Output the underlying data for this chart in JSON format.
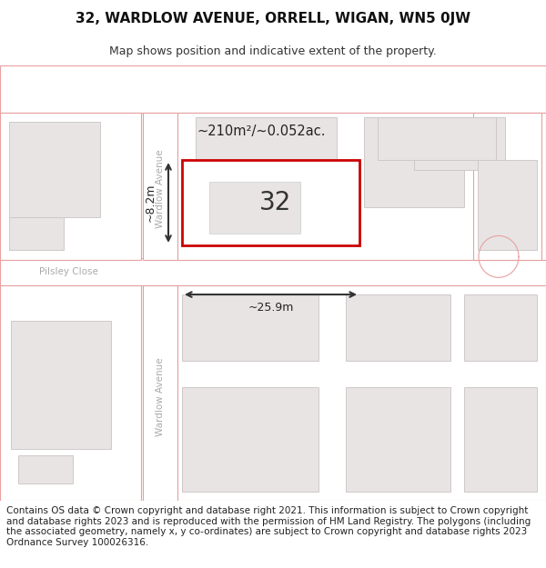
{
  "title": "32, WARDLOW AVENUE, ORRELL, WIGAN, WN5 0JW",
  "subtitle": "Map shows position and indicative extent of the property.",
  "footer": "Contains OS data © Crown copyright and database right 2021. This information is subject to Crown copyright and database rights 2023 and is reproduced with the permission of HM Land Registry. The polygons (including the associated geometry, namely x, y co-ordinates) are subject to Crown copyright and database rights 2023 Ordnance Survey 100026316.",
  "map_bg": "#f0eded",
  "road_color": "#ffffff",
  "road_border": "#e8a0a0",
  "plot_fill": "#e8e4e4",
  "plot_border": "#d0c8c8",
  "highlight_fill": "#ffffff",
  "highlight_border": "#cc0000",
  "highlight_label": "32",
  "area_label": "~210m²/~0.052ac.",
  "width_label": "~25.9m",
  "height_label": "~8.2m",
  "road_label_upper": "Wardlow Avenue",
  "road_label_lower": "Wardlow Avenue",
  "street_label": "Pilsley Close",
  "title_fontsize": 11,
  "subtitle_fontsize": 9,
  "footer_fontsize": 7.5,
  "label_color": "#222222",
  "road_text_color": "#aaaaaa"
}
